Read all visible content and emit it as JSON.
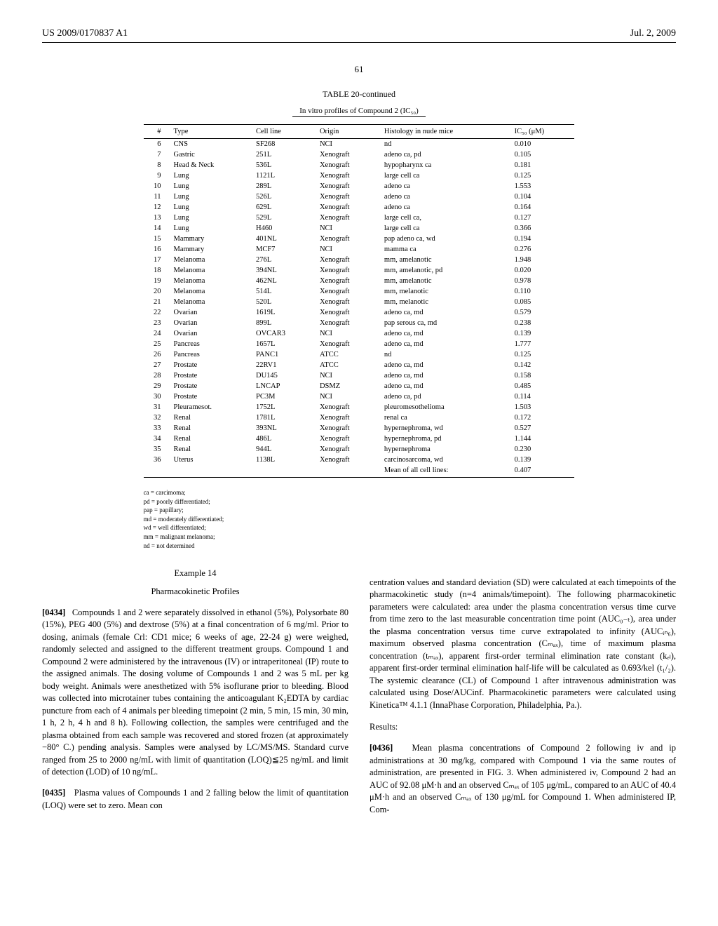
{
  "header": {
    "left": "US 2009/0170837 A1",
    "right": "Jul. 2, 2009"
  },
  "page_number": "61",
  "table": {
    "title": "TABLE 20-continued",
    "subtitle": "In vitro profiles of Compound 2 (IC₅₀)",
    "columns": [
      "#",
      "Type",
      "Cell line",
      "Origin",
      "Histology in nude mice",
      "IC₅₀ (μM)"
    ],
    "rows": [
      [
        "6",
        "CNS",
        "SF268",
        "NCI",
        "nd",
        "0.010"
      ],
      [
        "7",
        "Gastric",
        "251L",
        "Xenograft",
        "adeno ca, pd",
        "0.105"
      ],
      [
        "8",
        "Head & Neck",
        "536L",
        "Xenograft",
        "hypopharynx ca",
        "0.181"
      ],
      [
        "9",
        "Lung",
        "1121L",
        "Xenograft",
        "large cell ca",
        "0.125"
      ],
      [
        "10",
        "Lung",
        "289L",
        "Xenograft",
        "adeno ca",
        "1.553"
      ],
      [
        "11",
        "Lung",
        "526L",
        "Xenograft",
        "adeno ca",
        "0.104"
      ],
      [
        "12",
        "Lung",
        "629L",
        "Xenograft",
        "adeno ca",
        "0.164"
      ],
      [
        "13",
        "Lung",
        "529L",
        "Xenograft",
        "large cell ca,",
        "0.127"
      ],
      [
        "14",
        "Lung",
        "H460",
        "NCI",
        "large cell ca",
        "0.366"
      ],
      [
        "15",
        "Mammary",
        "401NL",
        "Xenograft",
        "pap adeno ca, wd",
        "0.194"
      ],
      [
        "16",
        "Mammary",
        "MCF7",
        "NCI",
        "mamma ca",
        "0.276"
      ],
      [
        "17",
        "Melanoma",
        "276L",
        "Xenograft",
        "mm, amelanotic",
        "1.948"
      ],
      [
        "18",
        "Melanoma",
        "394NL",
        "Xenograft",
        "mm, amelanotic, pd",
        "0.020"
      ],
      [
        "19",
        "Melanoma",
        "462NL",
        "Xenograft",
        "mm, amelanotic",
        "0.978"
      ],
      [
        "20",
        "Melanoma",
        "514L",
        "Xenograft",
        "mm, melanotic",
        "0.110"
      ],
      [
        "21",
        "Melanoma",
        "520L",
        "Xenograft",
        "mm, melanotic",
        "0.085"
      ],
      [
        "22",
        "Ovarian",
        "1619L",
        "Xenograft",
        "adeno ca, md",
        "0.579"
      ],
      [
        "23",
        "Ovarian",
        "899L",
        "Xenograft",
        "pap serous ca, md",
        "0.238"
      ],
      [
        "24",
        "Ovarian",
        "OVCAR3",
        "NCI",
        "adeno ca, md",
        "0.139"
      ],
      [
        "25",
        "Pancreas",
        "1657L",
        "Xenograft",
        "adeno ca, md",
        "1.777"
      ],
      [
        "26",
        "Pancreas",
        "PANC1",
        "ATCC",
        "nd",
        "0.125"
      ],
      [
        "27",
        "Prostate",
        "22RV1",
        "ATCC",
        "adeno ca, md",
        "0.142"
      ],
      [
        "28",
        "Prostate",
        "DU145",
        "NCI",
        "adeno ca, md",
        "0.158"
      ],
      [
        "29",
        "Prostate",
        "LNCAP",
        "DSMZ",
        "adeno ca, md",
        "0.485"
      ],
      [
        "30",
        "Prostate",
        "PC3M",
        "NCI",
        "adeno ca, pd",
        "0.114"
      ],
      [
        "31",
        "Pleuramesot.",
        "1752L",
        "Xenograft",
        "pleuromesothelioma",
        "1.503"
      ],
      [
        "32",
        "Renal",
        "1781L",
        "Xenograft",
        "renal ca",
        "0.172"
      ],
      [
        "33",
        "Renal",
        "393NL",
        "Xenograft",
        "hypernephroma, wd",
        "0.527"
      ],
      [
        "34",
        "Renal",
        "486L",
        "Xenograft",
        "hypernephroma, pd",
        "1.144"
      ],
      [
        "35",
        "Renal",
        "944L",
        "Xenograft",
        "hypernephroma",
        "0.230"
      ],
      [
        "36",
        "Uterus",
        "1138L",
        "Xenograft",
        "carcinosarcoma, wd",
        "0.139"
      ]
    ],
    "mean_label": "Mean of all cell lines:",
    "mean_value": "0.407"
  },
  "notes": [
    "ca = carcimoma;",
    "pd = poorly differentiated;",
    "pap = papillary;",
    "md = moderately differentiated;",
    "wd = well differentiated;",
    "mm = malignant melanoma;",
    "nd = not determined"
  ],
  "example": {
    "number": "Example 14",
    "title": "Pharmacokinetic Profiles",
    "p0434_num": "[0434]",
    "p0434": "Compounds 1 and 2 were separately dissolved in ethanol (5%), Polysorbate 80 (15%), PEG 400 (5%) and dextrose (5%) at a final concentration of 6 mg/ml. Prior to dosing, animals (female Crl: CD1 mice; 6 weeks of age, 22-24 g) were weighed, randomly selected and assigned to the different treatment groups. Compound 1 and Compound 2 were administered by the intravenous (IV) or intraperitoneal (IP) route to the assigned animals. The dosing volume of Compounds 1 and 2 was 5 mL per kg body weight. Animals were anesthetized with 5% isoflurane prior to bleeding. Blood was collected into microtainer tubes containing the anticoagulant K₂EDTA by cardiac puncture from each of 4 animals per bleeding timepoint (2 min, 5 min, 15 min, 30 min, 1 h, 2 h, 4 h and 8 h). Following collection, the samples were centrifuged and the plasma obtained from each sample was recovered and stored frozen (at approximately −80° C.) pending analysis. Samples were analysed by LC/MS/MS. Standard curve ranged from 25 to 2000 ng/mL with limit of quantitation (LOQ)≦25 ng/mL and limit of detection (LOD) of 10 ng/mL.",
    "p0435_num": "[0435]",
    "p0435a": "Plasma values of Compounds 1 and 2 falling below the limit of quantitation (LOQ) were set to zero. Mean con",
    "p0435b": "centration values and standard deviation (SD) were calculated at each timepoints of the pharmacokinetic study (n=4 animals/timepoint). The following pharmacokinetic parameters were calculated: area under the plasma concentration versus time curve from time zero to the last measurable concentration time point (AUC₀₋ₜ), area under the plasma concentration versus time curve extrapolated to infinity (AUCᵢₙ₆), maximum observed plasma concentration (Cₘₐₓ), time of maximum plasma concentration (tₘₐₓ), apparent first-order terminal elimination rate constant (kₑₗ), apparent first-order terminal elimination half-life will be calculated as 0.693/kel (t₁/₂). The systemic clearance (CL) of Compound 1 after intravenous administration was calculated using Dose/AUCinf. Pharmacokinetic parameters were calculated using Kinetica™ 4.1.1 (InnaPhase Corporation, Philadelphia, Pa.).",
    "results_h": "Results:",
    "p0436_num": "[0436]",
    "p0436": "Mean plasma concentrations of Compound 2 following iv and ip administrations at 30 mg/kg, compared with Compound 1 via the same routes of administration, are presented in FIG. 3. When administered iv, Compound 2 had an AUC of 92.08 μM·h and an observed Cₘₐₓ of 105 μg/mL, compared to an AUC of 40.4 μM·h and an observed Cₘₐₓ of 130 μg/mL for Compound 1. When administered IP, Com-"
  }
}
